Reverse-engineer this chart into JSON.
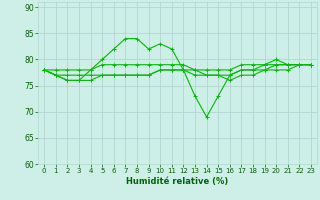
{
  "xlabel": "Humidité relative (%)",
  "xlim": [
    -0.5,
    23.5
  ],
  "ylim": [
    60,
    91
  ],
  "yticks": [
    60,
    65,
    70,
    75,
    80,
    85,
    90
  ],
  "xticks": [
    0,
    1,
    2,
    3,
    4,
    5,
    6,
    7,
    8,
    9,
    10,
    11,
    12,
    13,
    14,
    15,
    16,
    17,
    18,
    19,
    20,
    21,
    22,
    23
  ],
  "background_color": "#ceeee8",
  "grid_color": "#b0d8d0",
  "line_color": "#00bb00",
  "lines": [
    [
      78,
      77,
      76,
      76,
      78,
      80,
      82,
      84,
      84,
      82,
      83,
      82,
      78,
      73,
      69,
      73,
      77,
      78,
      78,
      79,
      80,
      79,
      79,
      79
    ],
    [
      78,
      78,
      78,
      78,
      78,
      79,
      79,
      79,
      79,
      79,
      79,
      79,
      79,
      78,
      78,
      78,
      78,
      79,
      79,
      79,
      79,
      79,
      79,
      79
    ],
    [
      78,
      77,
      77,
      77,
      77,
      77,
      77,
      77,
      77,
      77,
      78,
      78,
      78,
      78,
      77,
      77,
      77,
      78,
      78,
      78,
      79,
      79,
      79,
      79
    ],
    [
      78,
      77,
      76,
      76,
      76,
      77,
      77,
      77,
      77,
      77,
      78,
      78,
      78,
      77,
      77,
      77,
      76,
      77,
      77,
      78,
      78,
      78,
      79,
      79
    ]
  ]
}
